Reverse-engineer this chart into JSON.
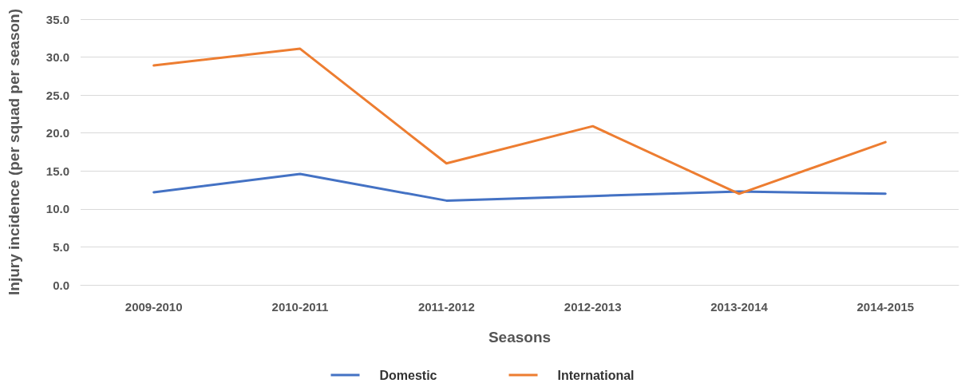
{
  "chart_data": {
    "type": "line",
    "xlabel": "Seasons",
    "ylabel": "Injury incidence (per squad per season)",
    "categories": [
      "2009-2010",
      "2010-2011",
      "2011-2012",
      "2012-2013",
      "2013-2014",
      "2014-2015"
    ],
    "series": [
      {
        "name": "Domestic",
        "color": "#4472c4",
        "values": [
          12.2,
          14.6,
          11.1,
          11.7,
          12.3,
          12.0
        ]
      },
      {
        "name": "International",
        "color": "#ed7d31",
        "values": [
          28.9,
          31.1,
          16.0,
          20.9,
          12.0,
          18.8
        ]
      }
    ],
    "ylim": [
      0,
      35
    ],
    "yticks": [
      {
        "value": 0,
        "label": "0.0"
      },
      {
        "value": 5,
        "label": "5.0"
      },
      {
        "value": 10,
        "label": "10.0"
      },
      {
        "value": 15,
        "label": "15.0"
      },
      {
        "value": 20,
        "label": "20.0"
      },
      {
        "value": 25,
        "label": "25.0"
      },
      {
        "value": 30,
        "label": "30.0"
      },
      {
        "value": 35,
        "label": "35.0"
      }
    ],
    "grid": "y",
    "legend": "bottom",
    "marker": "none",
    "line_style": "solid"
  }
}
